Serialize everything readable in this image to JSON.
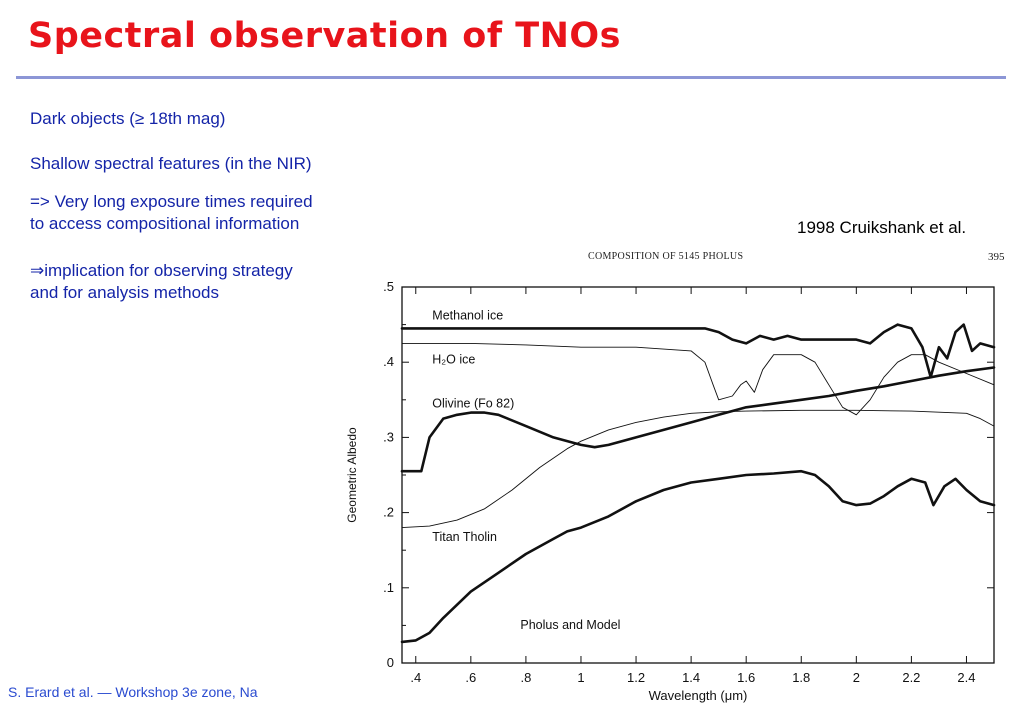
{
  "slide": {
    "title": "Spectral observation of TNOs",
    "bullets": [
      "Dark objects (≥ 18th mag)",
      "Shallow spectral features (in the NIR)",
      "=> Very long exposure times required",
      "to access compositional information",
      "⇒implication for observing strategy",
      "and for analysis methods"
    ],
    "citation": "1998 Cruikshank et al.",
    "footer": "S. Erard et al. — Workshop 3e zone, Na",
    "page_header": "COMPOSITION OF 5145 PHOLUS",
    "page_number": "395"
  },
  "chart_data": {
    "type": "line",
    "xlabel": "Wavelength (μm)",
    "ylabel": "Geometric Albedo",
    "xlim": [
      0.35,
      2.5
    ],
    "ylim": [
      0,
      0.5
    ],
    "x_ticks": [
      0.4,
      0.6,
      0.8,
      1,
      1.2,
      1.4,
      1.6,
      1.8,
      2,
      2.2,
      2.4
    ],
    "x_tick_labels": [
      ".4",
      ".6",
      ".8",
      "1",
      "1.2",
      "1.4",
      "1.6",
      "1.8",
      "2",
      "2.2",
      "2.4"
    ],
    "y_ticks": [
      0,
      0.1,
      0.2,
      0.3,
      0.4,
      0.5
    ],
    "y_tick_labels": [
      "0",
      ".1",
      ".2",
      ".3",
      ".4",
      ".5"
    ],
    "grid": false,
    "series": [
      {
        "name": "Methanol ice",
        "style": "thick",
        "x": [
          0.35,
          0.6,
          0.8,
          1.0,
          1.2,
          1.4,
          1.45,
          1.5,
          1.55,
          1.6,
          1.65,
          1.7,
          1.75,
          1.8,
          1.9,
          2.0,
          2.05,
          2.1,
          2.15,
          2.2,
          2.24,
          2.27,
          2.3,
          2.33,
          2.36,
          2.39,
          2.42,
          2.45,
          2.5
        ],
        "y": [
          0.445,
          0.445,
          0.445,
          0.445,
          0.445,
          0.445,
          0.445,
          0.44,
          0.43,
          0.425,
          0.435,
          0.43,
          0.435,
          0.43,
          0.43,
          0.43,
          0.425,
          0.44,
          0.45,
          0.445,
          0.42,
          0.38,
          0.42,
          0.405,
          0.44,
          0.45,
          0.415,
          0.425,
          0.42
        ]
      },
      {
        "name": "H₂O ice",
        "style": "thin",
        "x": [
          0.35,
          0.6,
          0.8,
          1.0,
          1.2,
          1.4,
          1.45,
          1.48,
          1.5,
          1.55,
          1.58,
          1.6,
          1.63,
          1.66,
          1.7,
          1.8,
          1.85,
          1.9,
          1.95,
          2.0,
          2.05,
          2.1,
          2.15,
          2.2,
          2.25,
          2.3,
          2.4,
          2.5
        ],
        "y": [
          0.425,
          0.425,
          0.423,
          0.42,
          0.42,
          0.415,
          0.4,
          0.37,
          0.35,
          0.355,
          0.37,
          0.375,
          0.36,
          0.39,
          0.41,
          0.41,
          0.4,
          0.37,
          0.34,
          0.33,
          0.35,
          0.38,
          0.4,
          0.41,
          0.41,
          0.4,
          0.385,
          0.37
        ]
      },
      {
        "name": "Olivine (Fo 82)",
        "style": "thick",
        "x": [
          0.35,
          0.42,
          0.45,
          0.5,
          0.55,
          0.6,
          0.65,
          0.7,
          0.8,
          0.9,
          1.0,
          1.05,
          1.1,
          1.2,
          1.3,
          1.4,
          1.5,
          1.6,
          1.7,
          1.8,
          1.9,
          2.0,
          2.1,
          2.2,
          2.3,
          2.4,
          2.5
        ],
        "y": [
          0.255,
          0.255,
          0.3,
          0.325,
          0.33,
          0.333,
          0.333,
          0.33,
          0.315,
          0.3,
          0.29,
          0.287,
          0.29,
          0.3,
          0.31,
          0.32,
          0.33,
          0.34,
          0.345,
          0.35,
          0.355,
          0.362,
          0.368,
          0.375,
          0.382,
          0.388,
          0.393
        ]
      },
      {
        "name": "Titan Tholin",
        "style": "thin",
        "x": [
          0.35,
          0.45,
          0.55,
          0.65,
          0.75,
          0.85,
          0.95,
          1.0,
          1.1,
          1.2,
          1.3,
          1.4,
          1.5,
          1.6,
          1.8,
          2.0,
          2.2,
          2.4,
          2.45,
          2.5
        ],
        "y": [
          0.18,
          0.182,
          0.19,
          0.205,
          0.23,
          0.26,
          0.285,
          0.295,
          0.31,
          0.32,
          0.327,
          0.332,
          0.334,
          0.335,
          0.336,
          0.336,
          0.335,
          0.332,
          0.325,
          0.315
        ]
      },
      {
        "name": "Pholus and Model",
        "style": "thick",
        "x": [
          0.35,
          0.4,
          0.45,
          0.5,
          0.6,
          0.7,
          0.8,
          0.9,
          0.95,
          1.0,
          1.1,
          1.2,
          1.3,
          1.4,
          1.5,
          1.6,
          1.7,
          1.8,
          1.85,
          1.9,
          1.95,
          2.0,
          2.05,
          2.1,
          2.15,
          2.2,
          2.25,
          2.28,
          2.32,
          2.36,
          2.4,
          2.45,
          2.5
        ],
        "y": [
          0.028,
          0.03,
          0.04,
          0.06,
          0.095,
          0.12,
          0.145,
          0.165,
          0.175,
          0.18,
          0.195,
          0.215,
          0.23,
          0.24,
          0.245,
          0.25,
          0.252,
          0.255,
          0.25,
          0.235,
          0.215,
          0.21,
          0.212,
          0.222,
          0.235,
          0.245,
          0.24,
          0.21,
          0.235,
          0.245,
          0.23,
          0.215,
          0.21
        ]
      }
    ],
    "annotations": [
      "Methanol ice",
      "H₂O ice",
      "Olivine (Fo 82)",
      "Titan Tholin",
      "Pholus and Model"
    ]
  }
}
